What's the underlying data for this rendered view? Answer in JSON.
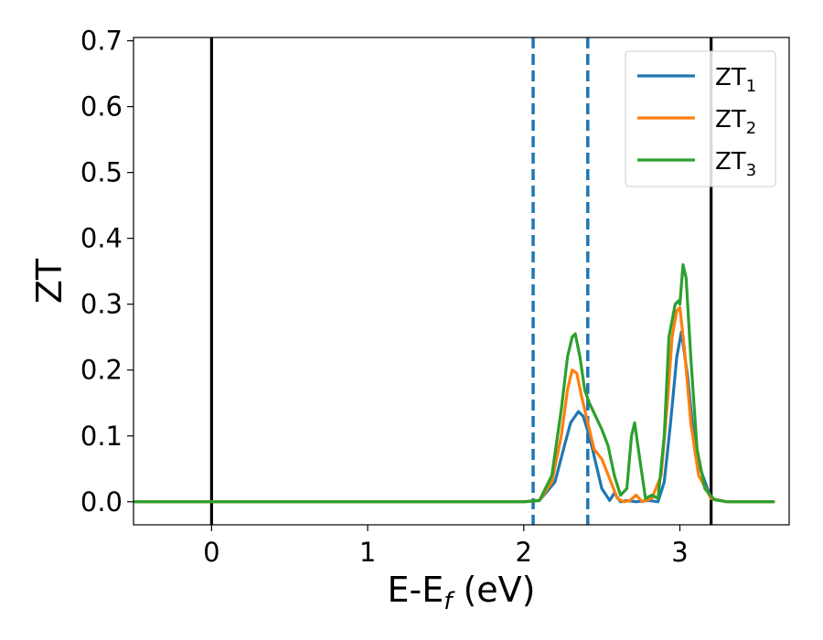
{
  "chart_data": {
    "type": "line",
    "xlabel": {
      "main": "E-E",
      "sub": "f",
      "unit": " (eV)"
    },
    "ylabel": "ZT",
    "xlim": [
      -0.5,
      3.7
    ],
    "ylim": [
      -0.035,
      0.705
    ],
    "xticks": [
      0,
      1,
      2,
      3
    ],
    "yticks": [
      0.0,
      0.1,
      0.2,
      0.3,
      0.4,
      0.5,
      0.6,
      0.7
    ],
    "ytick_labels": [
      "0.0",
      "0.1",
      "0.2",
      "0.3",
      "0.4",
      "0.5",
      "0.6",
      "0.7"
    ],
    "grid": false,
    "legend_position": "top-right",
    "vlines": [
      {
        "x": 0.0,
        "color": "#000000",
        "style": "solid"
      },
      {
        "x": 3.2,
        "color": "#000000",
        "style": "solid"
      },
      {
        "x": 2.06,
        "color": "#1f77b4",
        "style": "dashed"
      },
      {
        "x": 2.41,
        "color": "#1f77b4",
        "style": "dashed"
      }
    ],
    "series": [
      {
        "name": "ZT",
        "sub": "1",
        "color": "#1f77b4",
        "x": [
          -0.5,
          2.0,
          2.1,
          2.2,
          2.26,
          2.3,
          2.35,
          2.38,
          2.42,
          2.46,
          2.5,
          2.55,
          2.58,
          2.62,
          2.66,
          2.72,
          2.8,
          2.86,
          2.9,
          2.94,
          2.98,
          3.01,
          3.05,
          3.1,
          3.2,
          3.3,
          3.6
        ],
        "y": [
          0.0,
          0.0,
          0.002,
          0.03,
          0.085,
          0.12,
          0.137,
          0.13,
          0.1,
          0.06,
          0.02,
          0.002,
          0.013,
          0.0,
          0.002,
          0.0,
          0.002,
          0.0,
          0.03,
          0.12,
          0.22,
          0.258,
          0.19,
          0.07,
          0.005,
          0.0,
          0.0
        ]
      },
      {
        "name": "ZT",
        "sub": "2",
        "color": "#ff7f0e",
        "x": [
          -0.5,
          2.0,
          2.1,
          2.18,
          2.24,
          2.28,
          2.31,
          2.34,
          2.37,
          2.41,
          2.45,
          2.5,
          2.55,
          2.6,
          2.64,
          2.68,
          2.72,
          2.76,
          2.82,
          2.88,
          2.92,
          2.95,
          2.98,
          3.0,
          3.03,
          3.07,
          3.12,
          3.2,
          3.3,
          3.6
        ],
        "y": [
          0.0,
          0.0,
          0.002,
          0.03,
          0.1,
          0.17,
          0.2,
          0.195,
          0.16,
          0.12,
          0.08,
          0.065,
          0.035,
          0.005,
          0.0,
          0.002,
          0.01,
          0.0,
          0.005,
          0.04,
          0.15,
          0.25,
          0.29,
          0.295,
          0.23,
          0.12,
          0.04,
          0.005,
          0.0,
          0.0
        ]
      },
      {
        "name": "ZT",
        "sub": "3",
        "color": "#2ca02c",
        "x": [
          -0.5,
          2.0,
          2.1,
          2.18,
          2.24,
          2.28,
          2.31,
          2.33,
          2.36,
          2.39,
          2.42,
          2.46,
          2.5,
          2.54,
          2.58,
          2.62,
          2.66,
          2.69,
          2.71,
          2.74,
          2.78,
          2.82,
          2.86,
          2.9,
          2.93,
          2.97,
          2.99,
          3.0,
          3.02,
          3.04,
          3.07,
          3.11,
          3.16,
          3.22,
          3.3,
          3.6
        ],
        "y": [
          0.0,
          0.0,
          0.002,
          0.04,
          0.14,
          0.22,
          0.25,
          0.255,
          0.22,
          0.17,
          0.15,
          0.13,
          0.11,
          0.085,
          0.04,
          0.01,
          0.02,
          0.1,
          0.12,
          0.07,
          0.005,
          0.01,
          0.005,
          0.1,
          0.25,
          0.3,
          0.305,
          0.3,
          0.36,
          0.34,
          0.22,
          0.08,
          0.02,
          0.003,
          0.0,
          0.0
        ]
      }
    ]
  }
}
